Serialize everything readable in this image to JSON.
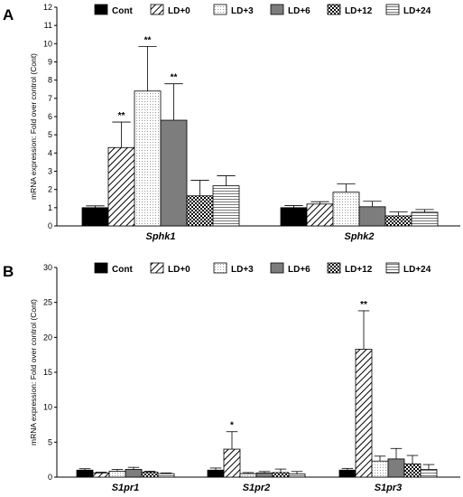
{
  "series_styles": [
    {
      "name": "Cont",
      "pattern": "solid"
    },
    {
      "name": "LD+0",
      "pattern": "diag"
    },
    {
      "name": "LD+3",
      "pattern": "dots"
    },
    {
      "name": "LD+6",
      "pattern": "gray"
    },
    {
      "name": "LD+12",
      "pattern": "check"
    },
    {
      "name": "LD+24",
      "pattern": "hlines"
    }
  ],
  "chart_data": [
    {
      "panel_label": "A",
      "type": "bar",
      "ylabel": "mRNA expression: Fold over control (Cont)",
      "ylim": [
        0,
        12
      ],
      "yticks": [
        0,
        1,
        2,
        3,
        4,
        5,
        6,
        7,
        8,
        9,
        10,
        11,
        12
      ],
      "categories": [
        "Sphk1",
        "Sphk2"
      ],
      "series": [
        {
          "name": "Cont",
          "values": [
            1.0,
            1.0
          ],
          "errors": [
            0.1,
            0.12
          ],
          "sig": [
            "",
            ""
          ]
        },
        {
          "name": "LD+0",
          "values": [
            4.3,
            1.2
          ],
          "errors": [
            1.4,
            0.13
          ],
          "sig": [
            "**",
            ""
          ]
        },
        {
          "name": "LD+3",
          "values": [
            7.4,
            1.85
          ],
          "errors": [
            2.45,
            0.45
          ],
          "sig": [
            "**",
            ""
          ]
        },
        {
          "name": "LD+6",
          "values": [
            5.8,
            1.05
          ],
          "errors": [
            2.0,
            0.3
          ],
          "sig": [
            "**",
            ""
          ]
        },
        {
          "name": "LD+12",
          "values": [
            1.65,
            0.55
          ],
          "errors": [
            0.85,
            0.22
          ],
          "sig": [
            "",
            ""
          ]
        },
        {
          "name": "LD+24",
          "values": [
            2.2,
            0.75
          ],
          "errors": [
            0.55,
            0.15
          ],
          "sig": [
            "",
            ""
          ]
        }
      ]
    },
    {
      "panel_label": "B",
      "type": "bar",
      "ylabel": "mRNA expression: Fold over control (Cont)",
      "ylim": [
        0,
        30
      ],
      "yticks": [
        0,
        5,
        10,
        15,
        20,
        25,
        30
      ],
      "categories": [
        "S1pr1",
        "S1pr2",
        "S1pr3"
      ],
      "series": [
        {
          "name": "Cont",
          "values": [
            1.0,
            1.0,
            1.0
          ],
          "errors": [
            0.2,
            0.3,
            0.25
          ],
          "sig": [
            "",
            "",
            ""
          ]
        },
        {
          "name": "LD+0",
          "values": [
            0.6,
            4.0,
            18.3
          ],
          "errors": [
            0.1,
            2.5,
            5.5
          ],
          "sig": [
            "",
            "*",
            "**"
          ]
        },
        {
          "name": "LD+3",
          "values": [
            0.85,
            0.5,
            2.3
          ],
          "errors": [
            0.25,
            0.15,
            0.7
          ],
          "sig": [
            "",
            "",
            ""
          ]
        },
        {
          "name": "LD+6",
          "values": [
            1.1,
            0.6,
            2.6
          ],
          "errors": [
            0.3,
            0.2,
            1.5
          ],
          "sig": [
            "",
            "",
            ""
          ]
        },
        {
          "name": "LD+12",
          "values": [
            0.7,
            0.65,
            1.9
          ],
          "errors": [
            0.15,
            0.5,
            1.2
          ],
          "sig": [
            "",
            "",
            ""
          ]
        },
        {
          "name": "LD+24",
          "values": [
            0.5,
            0.45,
            1.1
          ],
          "errors": [
            0.1,
            0.35,
            0.7
          ],
          "sig": [
            "",
            "",
            ""
          ]
        }
      ]
    }
  ]
}
